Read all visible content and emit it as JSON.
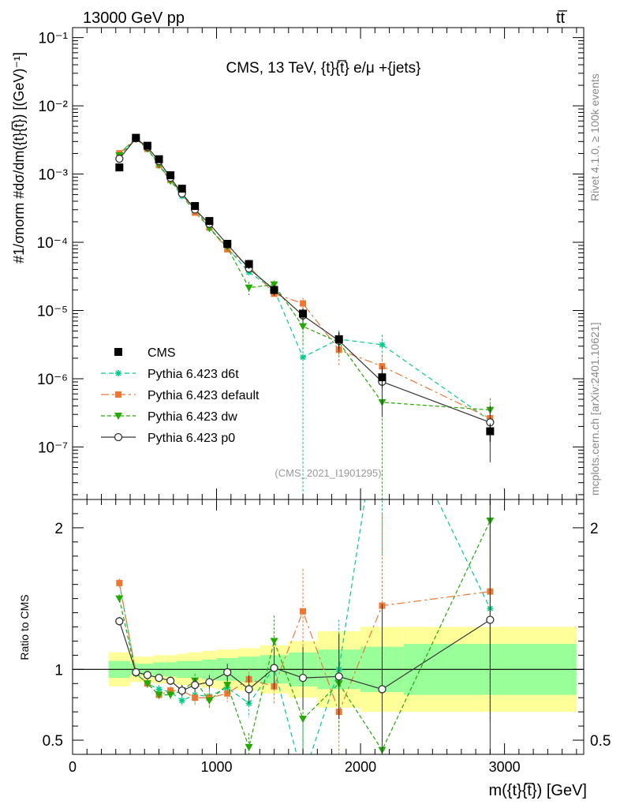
{
  "header": {
    "left_label": "13000 GeV pp",
    "right_label": "tt̅"
  },
  "side_labels": {
    "rivet": "Rivet 4.1.0, ≥ 100k events",
    "mcplots": "mcplots.cern.ch [arXiv:2401.10621]"
  },
  "chart_data": {
    "type": "line",
    "title": "CMS, 13 TeV, {t}{t̅} e/μ +{jets}",
    "analysis_id": "(CMS_2021_I1901295)",
    "xlabel": "m({t}{t̅}) [GeV]",
    "ylabel": "#1/σnorm #dσ/dm({t}{t̅}) [(GeV)⁻¹]",
    "ratio_ylabel": "Ratio to CMS",
    "x_ticks": [
      "0",
      "1000",
      "2000",
      "3000"
    ],
    "y_ticks": [
      "10⁻¹",
      "10⁻²",
      "10⁻³",
      "10⁻⁴",
      "10⁻⁵",
      "10⁻⁶",
      "10⁻⁷"
    ],
    "ratio_ticks": [
      "2",
      "1",
      "0.5"
    ],
    "xlim": [
      0,
      3550
    ],
    "ylim_log": [
      1.7e-08,
      0.14
    ],
    "ratio_ylim": [
      0.4,
      2.2
    ],
    "bins": [
      [
        250,
        400
      ],
      [
        400,
        480
      ],
      [
        480,
        560
      ],
      [
        560,
        640
      ],
      [
        640,
        720
      ],
      [
        720,
        800
      ],
      [
        800,
        900
      ],
      [
        900,
        1000
      ],
      [
        1000,
        1150
      ],
      [
        1150,
        1300
      ],
      [
        1300,
        1500
      ],
      [
        1500,
        1700
      ],
      [
        1700,
        2000
      ],
      [
        2000,
        2300
      ],
      [
        2300,
        3500
      ]
    ],
    "x": [
      325,
      440,
      520,
      600,
      680,
      760,
      850,
      950,
      1075,
      1225,
      1400,
      1600,
      1850,
      2150,
      2900
    ],
    "cms": {
      "name": "CMS",
      "values": [
        0.00125,
        0.0034,
        0.0026,
        0.00165,
        0.00096,
        0.00061,
        0.00034,
        0.000205,
        9.5e-05,
        4.8e-05,
        2e-05,
        9e-06,
        3.8e-06,
        1.05e-06,
        1.7e-07
      ],
      "band_inner": [
        0.06,
        0.04,
        0.04,
        0.05,
        0.05,
        0.06,
        0.06,
        0.07,
        0.08,
        0.09,
        0.1,
        0.12,
        0.14,
        0.16,
        0.18
      ],
      "band_outer": [
        0.12,
        0.09,
        0.09,
        0.1,
        0.1,
        0.11,
        0.12,
        0.13,
        0.14,
        0.15,
        0.17,
        0.2,
        0.27,
        0.3,
        0.3
      ]
    },
    "series": [
      {
        "name": "Pythia 6.423 d6t",
        "color": "#00cc88",
        "dash": "6,4",
        "marker": "star",
        "ratio": [
          1.61,
          0.97,
          0.9,
          0.86,
          0.84,
          0.78,
          0.82,
          0.81,
          0.87,
          0.76,
          1.01,
          0.23,
          1.0,
          3.0,
          1.43
        ],
        "ratio_err": [
          0.03,
          0.02,
          0.03,
          0.03,
          0.03,
          0.04,
          0.05,
          0.05,
          0.06,
          0.1,
          0.12,
          0.4,
          0.35,
          1.2,
          0.8
        ]
      },
      {
        "name": "Pythia 6.423 default",
        "color": "#ee7733",
        "dash": "10,4,3,4",
        "marker": "square",
        "ratio": [
          1.61,
          0.98,
          0.9,
          0.82,
          0.85,
          0.85,
          0.8,
          0.8,
          0.83,
          0.93,
          0.88,
          1.41,
          0.7,
          1.45,
          1.55
        ],
        "ratio_err": [
          0.03,
          0.02,
          0.03,
          0.03,
          0.03,
          0.04,
          0.05,
          0.05,
          0.06,
          0.08,
          0.12,
          0.3,
          0.3,
          0.65,
          0.9
        ]
      },
      {
        "name": "Pythia 6.423 dw",
        "color": "#22aa00",
        "dash": "5,3",
        "marker": "triangle",
        "ratio": [
          1.5,
          0.97,
          0.9,
          0.82,
          0.82,
          0.85,
          0.92,
          0.78,
          0.89,
          0.45,
          1.2,
          0.65,
          0.9,
          0.43,
          2.05
        ],
        "ratio_err": [
          0.03,
          0.02,
          0.03,
          0.03,
          0.03,
          0.04,
          0.05,
          0.05,
          0.06,
          0.1,
          0.18,
          0.3,
          0.35,
          0.8,
          1.0
        ]
      },
      {
        "name": "Pythia 6.423 p0",
        "color": "#333333",
        "dash": "",
        "marker": "circle",
        "ratio": [
          1.34,
          0.98,
          0.96,
          0.94,
          0.92,
          0.85,
          0.89,
          0.91,
          0.98,
          0.86,
          1.01,
          0.94,
          0.95,
          0.86,
          1.35
        ],
        "ratio_err": [
          0.03,
          0.02,
          0.03,
          0.03,
          0.03,
          0.04,
          0.05,
          0.05,
          0.06,
          0.1,
          0.15,
          0.22,
          0.3,
          0.6,
          1.0
        ]
      }
    ]
  }
}
